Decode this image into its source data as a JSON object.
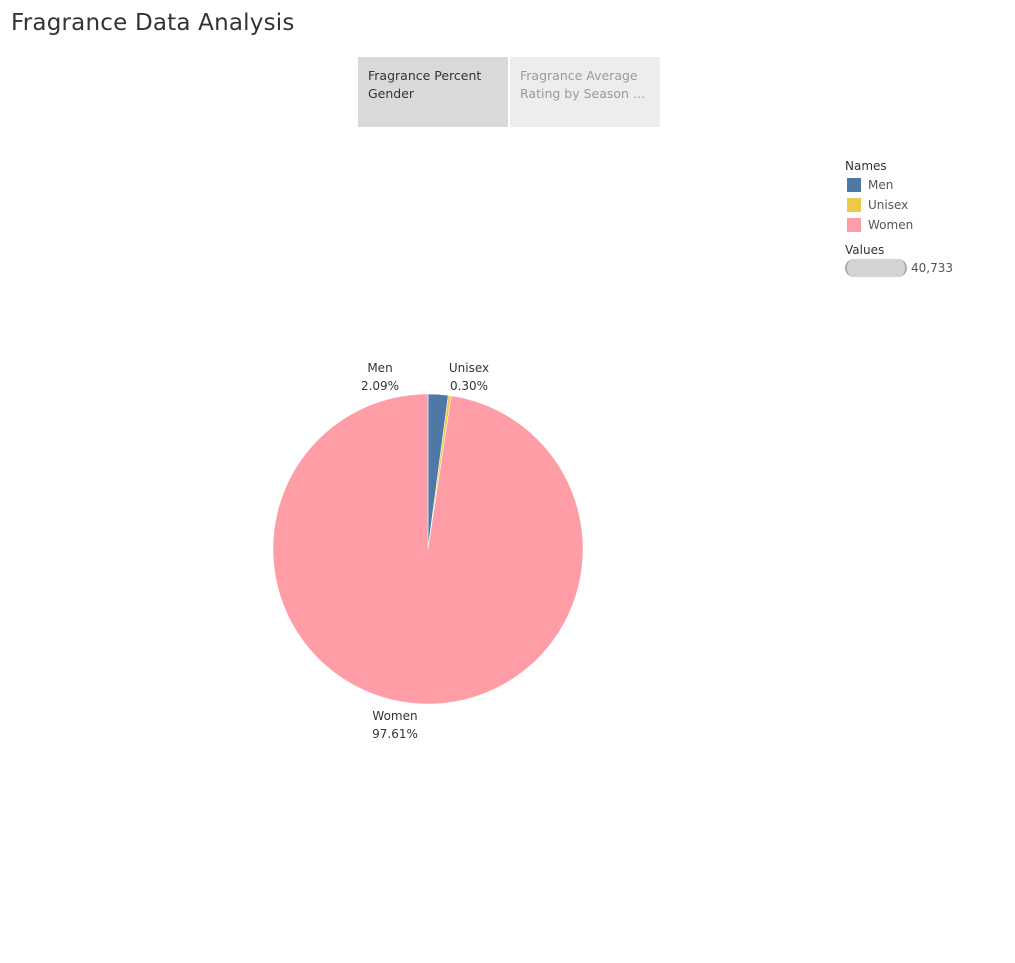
{
  "header": {
    "title": "Fragrance Data Analysis"
  },
  "tabs": [
    {
      "label": "Fragrance Percent Gender",
      "active": true
    },
    {
      "label": "Fragrance Average Rating by Season (0 t..",
      "active": false
    }
  ],
  "legend": {
    "names_title": "Names",
    "items": [
      {
        "label": "Men",
        "color": "#4e79a7"
      },
      {
        "label": "Unisex",
        "color": "#edc948"
      },
      {
        "label": "Women",
        "color": "#ff9da7"
      }
    ],
    "values_title": "Values",
    "size_value": "40,733"
  },
  "chart_data": {
    "type": "pie",
    "slices": [
      {
        "name": "Men",
        "percent": 2.09,
        "percent_label": "2.09%",
        "color": "#4e79a7"
      },
      {
        "name": "Unisex",
        "percent": 0.3,
        "percent_label": "0.30%",
        "color": "#edc948"
      },
      {
        "name": "Women",
        "percent": 97.61,
        "percent_label": "97.61%",
        "color": "#ff9da7"
      }
    ],
    "legend_placement": "top-right"
  }
}
